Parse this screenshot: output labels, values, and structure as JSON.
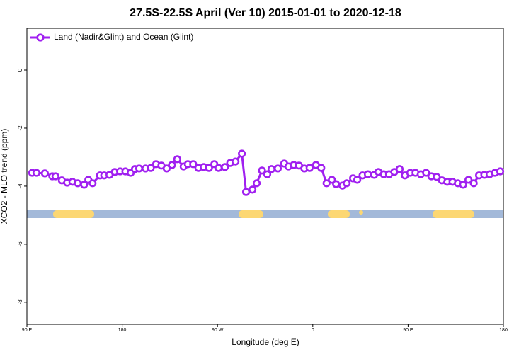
{
  "chart_data": {
    "type": "line",
    "title": "27.5S-22.5S April (Ver 10)   2015-01-01 to 2020-12-18",
    "xlabel": "Longitude (deg E)",
    "ylabel": "XCO2 - MLO trend (ppm)",
    "xlim": [
      90,
      540
    ],
    "ylim": [
      -8.76,
      1.44
    ],
    "xticks": [
      {
        "value": 90,
        "label": "90 E"
      },
      {
        "value": 180,
        "label": "180"
      },
      {
        "value": 270,
        "label": "90 W"
      },
      {
        "value": 360,
        "label": "0"
      },
      {
        "value": 450,
        "label": "90 E"
      },
      {
        "value": 540,
        "label": "180"
      }
    ],
    "yticks": [
      0,
      -2,
      -4,
      -6,
      -8
    ],
    "legend": "upper left",
    "x": [
      95,
      99,
      107,
      114,
      117,
      123,
      128,
      133,
      138,
      144,
      148,
      152,
      159,
      163,
      168,
      173,
      178,
      183,
      188,
      192,
      196,
      202,
      207,
      212,
      217,
      222,
      227,
      232,
      238,
      242,
      247,
      252,
      257,
      262,
      267,
      271,
      277,
      282,
      287,
      293,
      297,
      303,
      307,
      312,
      317,
      321,
      327,
      333,
      337,
      342,
      347,
      352,
      357,
      363,
      368,
      373,
      378,
      382,
      388,
      392,
      398,
      402,
      407,
      412,
      418,
      422,
      427,
      432,
      437,
      442,
      447,
      452,
      457,
      462,
      467,
      472,
      477,
      482,
      487,
      492,
      497,
      502,
      507,
      512,
      517,
      522,
      527,
      532,
      537
    ],
    "series": [
      {
        "name": "Land (Nadir&Glint) and Ocean (Glint)",
        "color": "#a020f0",
        "values": [
          -3.54,
          -3.54,
          -3.56,
          -3.66,
          -3.66,
          -3.8,
          -3.88,
          -3.85,
          -3.9,
          -3.95,
          -3.78,
          -3.9,
          -3.63,
          -3.63,
          -3.61,
          -3.51,
          -3.49,
          -3.49,
          -3.54,
          -3.41,
          -3.39,
          -3.39,
          -3.37,
          -3.24,
          -3.29,
          -3.39,
          -3.27,
          -3.07,
          -3.32,
          -3.24,
          -3.24,
          -3.37,
          -3.34,
          -3.37,
          -3.24,
          -3.37,
          -3.34,
          -3.2,
          -3.15,
          -2.88,
          -4.2,
          -4.12,
          -3.9,
          -3.46,
          -3.59,
          -3.41,
          -3.39,
          -3.22,
          -3.32,
          -3.27,
          -3.29,
          -3.39,
          -3.37,
          -3.27,
          -3.37,
          -3.9,
          -3.78,
          -3.93,
          -3.98,
          -3.9,
          -3.73,
          -3.78,
          -3.63,
          -3.59,
          -3.61,
          -3.51,
          -3.59,
          -3.59,
          -3.51,
          -3.41,
          -3.63,
          -3.54,
          -3.54,
          -3.59,
          -3.54,
          -3.66,
          -3.68,
          -3.8,
          -3.85,
          -3.85,
          -3.9,
          -3.95,
          -3.78,
          -3.9,
          -3.63,
          -3.61,
          -3.59,
          -3.54,
          -3.49
        ]
      }
    ]
  }
}
